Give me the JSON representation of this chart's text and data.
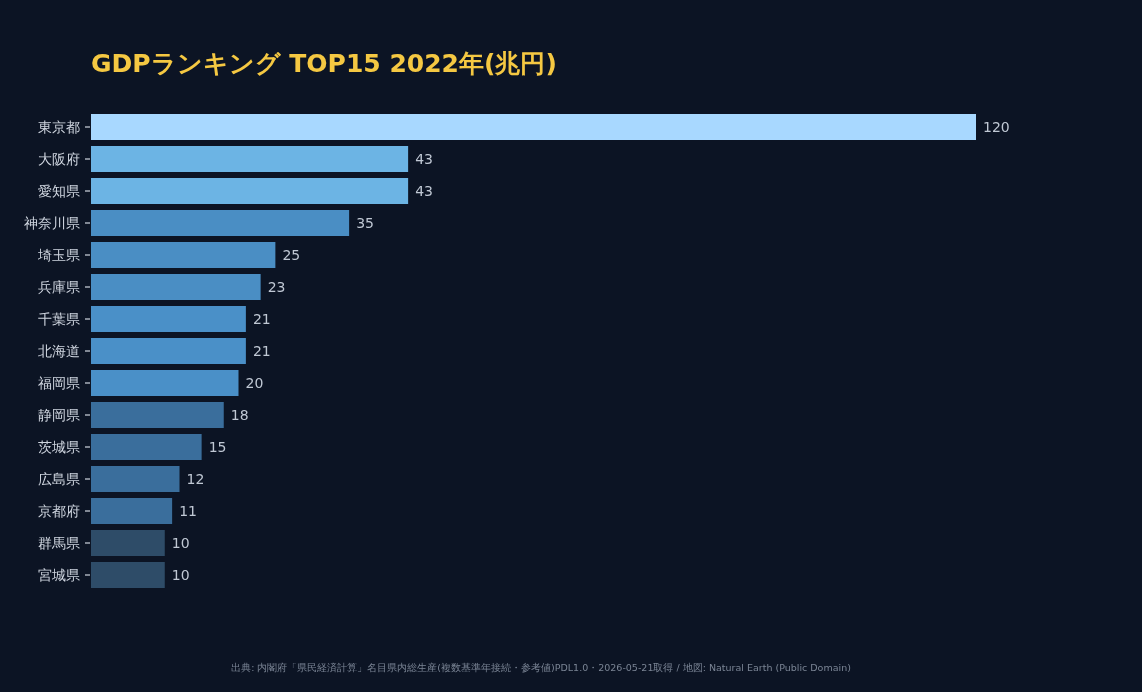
{
  "chart_data": {
    "type": "bar",
    "orientation": "horizontal",
    "title": "GDPランキング TOP15  2022年(兆円)",
    "categories": [
      "東京都",
      "大阪府",
      "愛知県",
      "神奈川県",
      "埼玉県",
      "兵庫県",
      "千葉県",
      "北海道",
      "福岡県",
      "静岡県",
      "茨城県",
      "広島県",
      "京都府",
      "群馬県",
      "宮城県"
    ],
    "values": [
      120,
      43,
      43,
      35,
      25,
      23,
      21,
      21,
      20,
      18,
      15,
      12,
      11,
      10,
      10
    ],
    "colors": [
      "#a8d8ff",
      "#6cb4e4",
      "#6cb4e4",
      "#4a8ec4",
      "#4a8ec4",
      "#4a8ec4",
      "#4a90c8",
      "#4a90c8",
      "#4a90c8",
      "#3a6e9c",
      "#3a6e9c",
      "#3a6e9c",
      "#3a6e9c",
      "#2e4c68",
      "#2e4c68"
    ],
    "data_labels": true,
    "annotations": [
      "出典: 内閣府「県民経済計算」名目県内総生産(複数基準年接続・参考値)PDL1.0・2026-05-21取得  /  地図: Natural Earth (Public Domain)"
    ]
  }
}
